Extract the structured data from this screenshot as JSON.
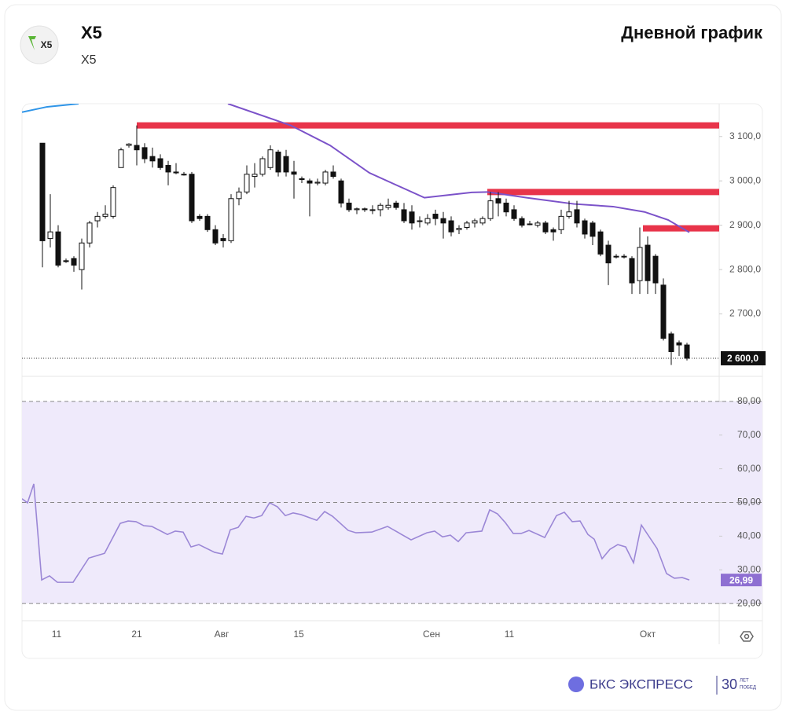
{
  "header": {
    "title": "X5",
    "subtitle": "X5",
    "logo_text": "X5",
    "chart_kind": "Дневной график"
  },
  "footer": {
    "brand": "БКС ЭКСПРЕСС",
    "anniversary_number": "30",
    "anniversary_line1": "ЛЕТ",
    "anniversary_line2": "ПОБЕД"
  },
  "chart_data": [
    {
      "type": "candlestick",
      "open": [
        3085,
        2870,
        2885,
        2820,
        2825,
        2800,
        2860,
        2910,
        2920,
        2920,
        3030,
        3080,
        3080,
        3075,
        3055,
        3050,
        3035,
        3020,
        3015,
        3015,
        2920,
        2920,
        2890,
        2870,
        2865,
        2960,
        2975,
        3010,
        3015,
        3030,
        3065,
        3055,
        3020,
        3005,
        3000,
        2995,
        2995,
        3020,
        3000,
        2950,
        2935,
        2937,
        2935,
        2935,
        2940,
        2950,
        2935,
        2930,
        2910,
        2905,
        2925,
        2915,
        2910,
        2890,
        2895,
        2905,
        2905,
        2915,
        2960,
        2950,
        2935,
        2915,
        2903,
        2900,
        2905,
        2890,
        2890,
        2920,
        2935,
        2910,
        2905,
        2885,
        2855,
        2830,
        2830,
        2825,
        2775,
        2855,
        2830,
        2765,
        2655,
        2635,
        2630
      ],
      "high": [
        3085,
        2970,
        2900,
        2825,
        2830,
        2870,
        2910,
        2930,
        2945,
        2990,
        3075,
        3085,
        3125,
        3085,
        3075,
        3060,
        3045,
        3040,
        3020,
        3020,
        2925,
        2925,
        2900,
        2880,
        2970,
        2985,
        3035,
        3040,
        3055,
        3080,
        3070,
        3070,
        3045,
        3010,
        3005,
        3005,
        3025,
        3035,
        3005,
        2960,
        2940,
        2940,
        2945,
        2950,
        2960,
        2955,
        2950,
        2945,
        2920,
        2925,
        2935,
        2930,
        2920,
        2900,
        2910,
        2915,
        2920,
        2975,
        2975,
        2960,
        2945,
        2920,
        2910,
        2910,
        2910,
        2895,
        2935,
        2955,
        2955,
        2915,
        2910,
        2890,
        2865,
        2835,
        2835,
        2830,
        2895,
        2875,
        2835,
        2780,
        2660,
        2640,
        2635
      ],
      "low": [
        2805,
        2850,
        2805,
        2815,
        2795,
        2755,
        2850,
        2895,
        2915,
        2915,
        3030,
        3075,
        3035,
        3040,
        3030,
        3025,
        2990,
        3015,
        3012,
        2905,
        2910,
        2885,
        2855,
        2850,
        2860,
        2945,
        2970,
        2985,
        3010,
        3025,
        3010,
        3010,
        2960,
        2995,
        2920,
        2990,
        2990,
        3005,
        2940,
        2930,
        2925,
        2930,
        2925,
        2920,
        2935,
        2935,
        2905,
        2890,
        2895,
        2900,
        2900,
        2870,
        2875,
        2880,
        2890,
        2895,
        2900,
        2910,
        2920,
        2920,
        2910,
        2895,
        2900,
        2895,
        2880,
        2865,
        2880,
        2915,
        2895,
        2870,
        2855,
        2830,
        2765,
        2825,
        2825,
        2745,
        2745,
        2745,
        2745,
        2640,
        2585,
        2605,
        2595
      ],
      "close": [
        2865,
        2885,
        2810,
        2818,
        2810,
        2860,
        2905,
        2920,
        2925,
        2985,
        3070,
        3083,
        3070,
        3050,
        3045,
        3030,
        3020,
        3018,
        3015,
        2910,
        2915,
        2890,
        2860,
        2865,
        2960,
        2975,
        3015,
        3015,
        3050,
        3070,
        3020,
        3020,
        3015,
        3003,
        2995,
        2997,
        3020,
        3010,
        2950,
        2935,
        2937,
        2935,
        2935,
        2945,
        2945,
        2940,
        2910,
        2905,
        2910,
        2915,
        2915,
        2905,
        2885,
        2893,
        2905,
        2910,
        2915,
        2955,
        2950,
        2930,
        2915,
        2900,
        2903,
        2905,
        2885,
        2885,
        2920,
        2930,
        2905,
        2880,
        2875,
        2835,
        2815,
        2830,
        2830,
        2770,
        2850,
        2775,
        2770,
        2645,
        2615,
        2630,
        2600
      ],
      "up_color": "#ffffff",
      "down_color": "#111111",
      "levels": [
        {
          "value": 3125,
          "from": 12,
          "color": "#e8344a"
        },
        {
          "value": 2975,
          "from": 56.6,
          "color": "#e8344a"
        },
        {
          "value": 2893,
          "from": 76.4,
          "color": "#e8344a"
        }
      ],
      "lines": [
        {
          "color": "#7b52c9",
          "x": [
            23.6,
            31.6,
            36.6,
            41.6,
            48.6,
            54.6,
            56.6,
            61.6,
            67.6,
            72.6,
            76.6,
            79.6,
            82.3
          ],
          "values": [
            3174,
            3125,
            3080,
            3018,
            2962,
            2974,
            2975,
            2962,
            2948,
            2942,
            2930,
            2912,
            2884
          ]
        },
        {
          "color": "#2f95e8",
          "x": [
            -2.6,
            0.6,
            4.6
          ],
          "values": [
            3155,
            3167,
            3174
          ]
        }
      ],
      "current": {
        "value": 2600,
        "label": "2 600,0"
      },
      "xlim": [
        -2.6,
        86.1
      ],
      "ylim": [
        2561,
        3174
      ],
      "yticks": [
        {
          "value": 2700,
          "label": "2 700,0"
        },
        {
          "value": 2800,
          "label": "2 800,0"
        },
        {
          "value": 2900,
          "label": "2 900,0"
        },
        {
          "value": 3000,
          "label": "3 000,0"
        },
        {
          "value": 3100,
          "label": "3 100,0"
        }
      ]
    },
    {
      "type": "line",
      "color": "#9b87d6",
      "x": [
        -2.6,
        -1.9,
        -1.1,
        -0.1,
        0.9,
        1.9,
        3.9,
        5.9,
        7.9,
        9.9,
        10.9,
        11.9,
        12.9,
        13.9,
        15.9,
        16.9,
        17.9,
        18.9,
        19.9,
        21.9,
        22.9,
        23.9,
        24.9,
        25.9,
        26.9,
        27.9,
        28.9,
        29.9,
        30.9,
        31.9,
        32.9,
        34.9,
        35.9,
        36.9,
        38.9,
        39.9,
        41.9,
        43.9,
        46.9,
        48.9,
        49.9,
        50.9,
        51.9,
        52.9,
        53.9,
        55.9,
        56.9,
        57.9,
        58.9,
        59.9,
        60.9,
        61.9,
        63.9,
        65.4,
        66.4,
        67.4,
        68.4,
        69.4,
        70.2,
        71.2,
        72.2,
        73.2,
        74.2,
        75.2,
        76.2,
        78.2,
        79.4,
        80.4,
        81.4,
        82.3
      ],
      "values": [
        51.1,
        49.9,
        55.5,
        27.0,
        28.2,
        26.3,
        26.3,
        33.5,
        34.9,
        43.8,
        44.5,
        44.3,
        43.1,
        42.9,
        40.5,
        41.5,
        41.2,
        36.8,
        37.5,
        35.2,
        34.7,
        41.9,
        42.6,
        45.9,
        45.4,
        46.1,
        49.9,
        48.7,
        46.1,
        46.9,
        46.4,
        44.7,
        47.3,
        45.9,
        41.7,
        41.0,
        41.2,
        42.9,
        38.9,
        41.0,
        41.5,
        39.8,
        40.3,
        38.4,
        41.0,
        41.5,
        47.8,
        46.6,
        44.0,
        40.8,
        40.8,
        41.7,
        39.6,
        46.1,
        47.1,
        44.3,
        44.5,
        40.5,
        39.1,
        33.3,
        36.1,
        37.5,
        36.8,
        32.1,
        43.3,
        36.3,
        28.9,
        27.5,
        27.7,
        27.0
      ],
      "band": [
        20,
        80
      ],
      "dashed_levels": [
        20,
        50,
        80
      ],
      "current": {
        "value": 26.99,
        "label": "26,99"
      },
      "xlim": [
        -2.6,
        86.1
      ],
      "ylim": [
        14.9,
        87.2
      ],
      "yticks": [
        {
          "value": 20,
          "label": "20,00"
        },
        {
          "value": 30,
          "label": "30,00"
        },
        {
          "value": 40,
          "label": "40,00"
        },
        {
          "value": 50,
          "label": "50,00"
        },
        {
          "value": 60,
          "label": "60,00"
        },
        {
          "value": 70,
          "label": "70,00"
        },
        {
          "value": 80,
          "label": "80,00"
        }
      ],
      "xticks": [
        {
          "value": 1.8,
          "label": "11"
        },
        {
          "value": 12,
          "label": "21"
        },
        {
          "value": 22.8,
          "label": "Авг"
        },
        {
          "value": 32.6,
          "label": "15"
        },
        {
          "value": 49.5,
          "label": "Сен"
        },
        {
          "value": 59.4,
          "label": "11"
        },
        {
          "value": 77,
          "label": "Окт"
        }
      ]
    }
  ]
}
